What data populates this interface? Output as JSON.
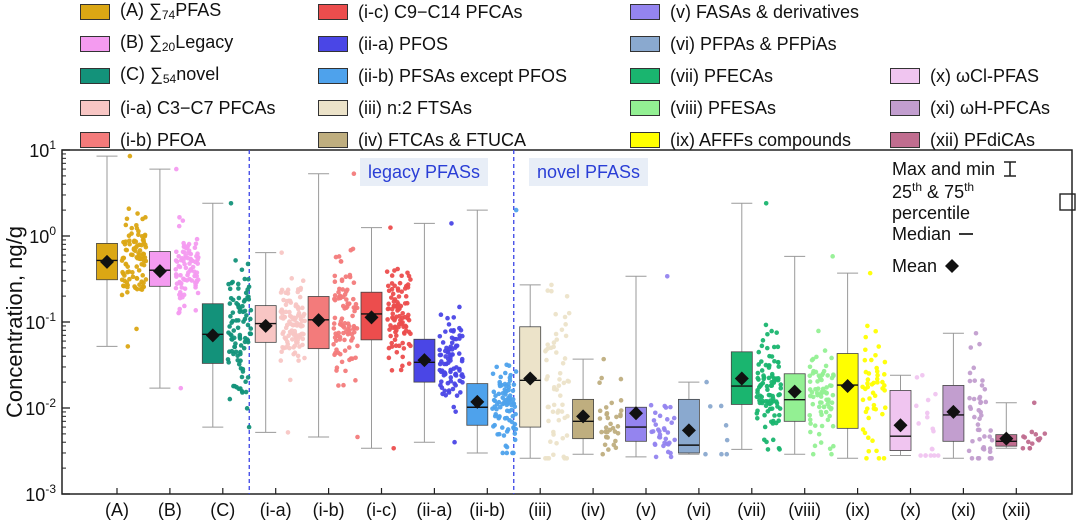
{
  "legend": [
    {
      "id": "A",
      "pre": "(A) ∑",
      "sub": "74",
      "post": "PFAS",
      "color": "#dba714"
    },
    {
      "id": "B",
      "pre": "(B) ∑",
      "sub": "20",
      "post": "Legacy",
      "color": "#f49bf0"
    },
    {
      "id": "C",
      "pre": "(C) ∑",
      "sub": "54",
      "post": "novel",
      "color": "#13927a"
    },
    {
      "id": "i-a",
      "pre": "(i-a) C3−C7 PFCAs",
      "sub": "",
      "post": "",
      "color": "#f8c6c4"
    },
    {
      "id": "i-b",
      "pre": "(i-b) PFOA",
      "sub": "",
      "post": "",
      "color": "#f37b7b"
    },
    {
      "id": "i-c",
      "pre": "(i-c) C9−C14 PFCAs",
      "sub": "",
      "post": "",
      "color": "#ec4d4d"
    },
    {
      "id": "ii-a",
      "pre": "(ii-a) PFOS",
      "sub": "",
      "post": "",
      "color": "#4a46e6"
    },
    {
      "id": "ii-b",
      "pre": "(ii-b) PFSAs except PFOS",
      "sub": "",
      "post": "",
      "color": "#4ea2ec"
    },
    {
      "id": "iii",
      "pre": "(iii) n:2 FTSAs",
      "sub": "",
      "post": "",
      "color": "#ece3c9"
    },
    {
      "id": "iv",
      "pre": "(iv) FTCAs & FTUCA",
      "sub": "",
      "post": "",
      "color": "#bfae7f"
    },
    {
      "id": "v",
      "pre": "(v) FASAs & derivatives",
      "sub": "",
      "post": "",
      "color": "#9484ef"
    },
    {
      "id": "vi",
      "pre": "(vi) PFPAs & PFPiAs",
      "sub": "",
      "post": "",
      "color": "#8aa9cf"
    },
    {
      "id": "vii",
      "pre": "(vii) PFECAs",
      "sub": "",
      "post": "",
      "color": "#1ab56f"
    },
    {
      "id": "viii",
      "pre": "(viii) PFESAs",
      "sub": "",
      "post": "",
      "color": "#93f093"
    },
    {
      "id": "ix",
      "pre": "(ix) AFFFs compounds",
      "sub": "",
      "post": "",
      "color": "#ffff00"
    },
    {
      "id": "x",
      "pre": "(x) ωCl-PFAS",
      "sub": "",
      "post": "",
      "color": "#f0c5f0"
    },
    {
      "id": "xi",
      "pre": "(xi) ωH-PFCAs",
      "sub": "",
      "post": "",
      "color": "#c29ecf"
    },
    {
      "id": "xii",
      "pre": "(xii) PFdiCAs",
      "sub": "",
      "post": "",
      "color": "#c06d8f"
    }
  ],
  "region_labels": {
    "legacy": "legacy PFASs",
    "novel": "novel PFASs"
  },
  "key": {
    "maxmin": "Max and min",
    "percentile_pre": "25",
    "percentile_mid": "th",
    "percentile_amp": " & 75",
    "percentile_post": " percentile",
    "median": "Median",
    "mean": "Mean"
  },
  "chart_data": {
    "type": "box",
    "ylabel": "Concentration, ng/g",
    "yscale": "log",
    "ylim": [
      0.001,
      10
    ],
    "ytick_labels": [
      {
        "mant": "10",
        "exp": "-3",
        "value": 0.001
      },
      {
        "mant": "10",
        "exp": "-2",
        "value": 0.01
      },
      {
        "mant": "10",
        "exp": "-1",
        "value": 0.1
      },
      {
        "mant": "10",
        "exp": "0",
        "value": 1
      },
      {
        "mant": "10",
        "exp": "1",
        "value": 10
      }
    ],
    "categories": [
      "(A)",
      "(B)",
      "(C)",
      "(i-a)",
      "(i-b)",
      "(i-c)",
      "(ii-a)",
      "(ii-b)",
      "(iii)",
      "(iv)",
      "(v)",
      "(vi)",
      "(vii)",
      "(viii)",
      "(ix)",
      "(x)",
      "(xi)",
      "(xii)"
    ],
    "series": [
      {
        "min": 0.052,
        "q1": 0.31,
        "median": 0.52,
        "q3": 0.82,
        "max": 8.5,
        "mean": 0.5,
        "n": 100,
        "color": "#dba714"
      },
      {
        "min": 0.017,
        "q1": 0.26,
        "median": 0.4,
        "q3": 0.66,
        "max": 6.0,
        "mean": 0.39,
        "n": 90,
        "color": "#f49bf0"
      },
      {
        "min": 0.006,
        "q1": 0.033,
        "median": 0.072,
        "q3": 0.163,
        "max": 2.4,
        "mean": 0.07,
        "n": 100,
        "color": "#13927a"
      },
      {
        "min": 0.0052,
        "q1": 0.058,
        "median": 0.096,
        "q3": 0.155,
        "max": 0.64,
        "mean": 0.09,
        "n": 110,
        "color": "#f8c6c4"
      },
      {
        "min": 0.0046,
        "q1": 0.049,
        "median": 0.106,
        "q3": 0.198,
        "max": 5.3,
        "mean": 0.105,
        "n": 100,
        "color": "#f37b7b"
      },
      {
        "min": 0.0034,
        "q1": 0.062,
        "median": 0.124,
        "q3": 0.222,
        "max": 1.25,
        "mean": 0.113,
        "n": 100,
        "color": "#ec4d4d"
      },
      {
        "min": 0.004,
        "q1": 0.02,
        "median": 0.034,
        "q3": 0.063,
        "max": 1.4,
        "mean": 0.036,
        "n": 90,
        "color": "#4a46e6"
      },
      {
        "min": 0.003,
        "q1": 0.0063,
        "median": 0.0102,
        "q3": 0.0192,
        "max": 2.0,
        "mean": 0.0118,
        "n": 90,
        "color": "#4ea2ec"
      },
      {
        "min": 0.0026,
        "q1": 0.006,
        "median": 0.021,
        "q3": 0.088,
        "max": 0.27,
        "mean": 0.022,
        "n": 60,
        "color": "#ece3c9"
      },
      {
        "min": 0.0029,
        "q1": 0.0044,
        "median": 0.007,
        "q3": 0.0126,
        "max": 0.037,
        "mean": 0.008,
        "n": 35,
        "color": "#bfae7f"
      },
      {
        "min": 0.0027,
        "q1": 0.0041,
        "median": 0.006,
        "q3": 0.0102,
        "max": 0.34,
        "mean": 0.0087,
        "n": 35,
        "color": "#9484ef"
      },
      {
        "min": 0.0029,
        "q1": 0.003,
        "median": 0.0037,
        "q3": 0.0126,
        "max": 0.02,
        "mean": 0.0055,
        "n": 8,
        "color": "#8aa9cf"
      },
      {
        "min": 0.0033,
        "q1": 0.011,
        "median": 0.018,
        "q3": 0.045,
        "max": 2.4,
        "mean": 0.022,
        "n": 100,
        "color": "#1ab56f"
      },
      {
        "min": 0.0029,
        "q1": 0.007,
        "median": 0.0125,
        "q3": 0.025,
        "max": 0.58,
        "mean": 0.0155,
        "n": 80,
        "color": "#93f093"
      },
      {
        "min": 0.0026,
        "q1": 0.0058,
        "median": 0.0185,
        "q3": 0.043,
        "max": 0.37,
        "mean": 0.018,
        "n": 50,
        "color": "#ffff00"
      },
      {
        "min": 0.0028,
        "q1": 0.0032,
        "median": 0.0047,
        "q3": 0.016,
        "max": 0.024,
        "mean": 0.0063,
        "n": 18,
        "color": "#f0c5f0"
      },
      {
        "min": 0.0026,
        "q1": 0.0041,
        "median": 0.0083,
        "q3": 0.0183,
        "max": 0.074,
        "mean": 0.009,
        "n": 45,
        "color": "#c29ecf"
      },
      {
        "min": 0.0034,
        "q1": 0.0036,
        "median": 0.0041,
        "q3": 0.0049,
        "max": 0.0115,
        "mean": 0.0044,
        "n": 14,
        "color": "#c06d8f"
      }
    ],
    "divider_after": [
      2,
      7
    ]
  }
}
